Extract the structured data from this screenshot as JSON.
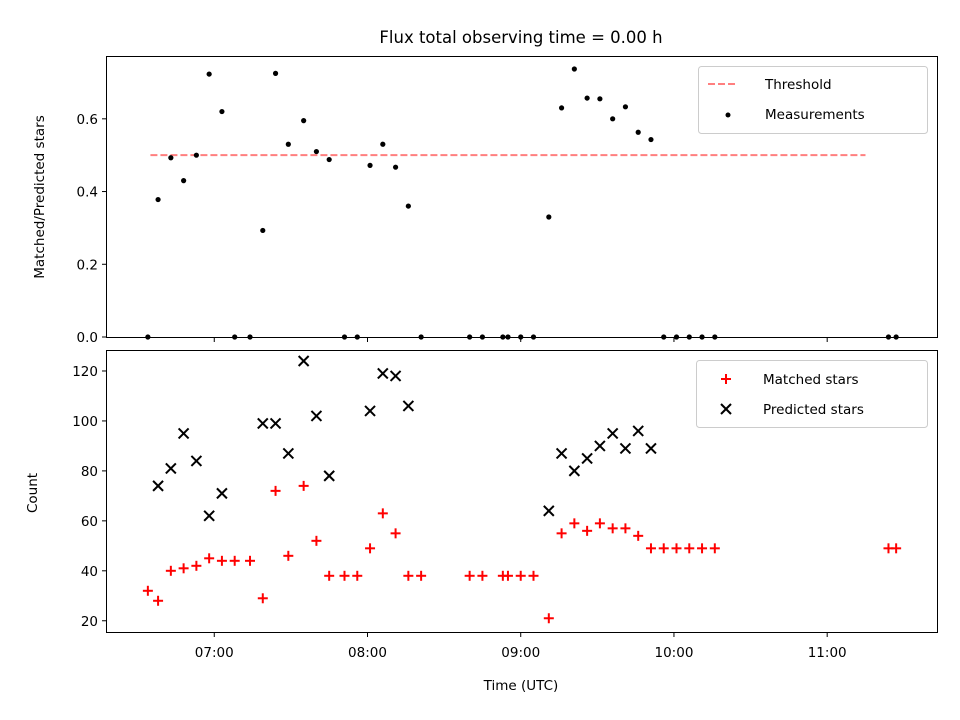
{
  "chart_data": {
    "title": "Flux total observing time = 0.00 h",
    "xlabel": "Time (UTC)",
    "x_tick_labels": [
      "07:00",
      "08:00",
      "09:00",
      "10:00",
      "11:00"
    ],
    "x_ticks": [
      "07:00",
      "08:00",
      "09:00",
      "10:00",
      "11:00"
    ],
    "xlim": [
      "06:18",
      "11:43"
    ],
    "colors": {
      "threshold": "#ff7f7f",
      "measurements": "#000000",
      "matched": "#ff0000",
      "predicted": "#000000"
    },
    "panels": [
      {
        "type": "scatter",
        "ylabel": "Matched/Predicted stars",
        "ylim": [
          0,
          0.77
        ],
        "yticks": [
          0.0,
          0.2,
          0.4,
          0.6
        ],
        "y_tick_labels": [
          "0.0",
          "0.2",
          "0.4",
          "0.6"
        ],
        "legend_position": "top-right",
        "threshold": {
          "name": "Threshold",
          "value": 0.5,
          "x_range": [
            "06:35",
            "11:15"
          ],
          "style": "dashed"
        },
        "series": [
          {
            "name": "Measurements",
            "marker": "dot",
            "points": [
              [
                "06:34",
                0.0
              ],
              [
                "06:38",
                0.378
              ],
              [
                "06:43",
                0.493
              ],
              [
                "06:48",
                0.43
              ],
              [
                "06:53",
                0.5
              ],
              [
                "06:58",
                0.723
              ],
              [
                "07:03",
                0.62
              ],
              [
                "07:08",
                0.0
              ],
              [
                "07:14",
                0.0
              ],
              [
                "07:19",
                0.293
              ],
              [
                "07:24",
                0.725
              ],
              [
                "07:29",
                0.53
              ],
              [
                "07:35",
                0.595
              ],
              [
                "07:40",
                0.51
              ],
              [
                "07:45",
                0.488
              ],
              [
                "07:51",
                0.0
              ],
              [
                "07:56",
                0.0
              ],
              [
                "08:01",
                0.472
              ],
              [
                "08:06",
                0.53
              ],
              [
                "08:11",
                0.467
              ],
              [
                "08:16",
                0.36
              ],
              [
                "08:21",
                0.0
              ],
              [
                "08:40",
                0.0
              ],
              [
                "08:45",
                0.0
              ],
              [
                "08:53",
                0.0
              ],
              [
                "08:55",
                0.0
              ],
              [
                "09:00",
                0.0
              ],
              [
                "09:05",
                0.0
              ],
              [
                "09:11",
                0.33
              ],
              [
                "09:16",
                0.63
              ],
              [
                "09:21",
                0.737
              ],
              [
                "09:26",
                0.657
              ],
              [
                "09:31",
                0.655
              ],
              [
                "09:36",
                0.6
              ],
              [
                "09:41",
                0.633
              ],
              [
                "09:46",
                0.563
              ],
              [
                "09:51",
                0.543
              ],
              [
                "09:56",
                0.0
              ],
              [
                "10:01",
                0.0
              ],
              [
                "10:06",
                0.0
              ],
              [
                "10:11",
                0.0
              ],
              [
                "10:16",
                0.0
              ],
              [
                "11:24",
                0.0
              ],
              [
                "11:27",
                0.0
              ]
            ]
          }
        ]
      },
      {
        "type": "scatter",
        "ylabel": "Count",
        "ylim": [
          15.5,
          128
        ],
        "yticks": [
          20,
          40,
          60,
          80,
          100,
          120
        ],
        "y_tick_labels": [
          "20",
          "40",
          "60",
          "80",
          "100",
          "120"
        ],
        "legend_position": "top-right",
        "series": [
          {
            "name": "Matched stars",
            "marker": "plus",
            "points": [
              [
                "06:34",
                32
              ],
              [
                "06:38",
                28
              ],
              [
                "06:43",
                40
              ],
              [
                "06:48",
                41
              ],
              [
                "06:53",
                42
              ],
              [
                "06:58",
                45
              ],
              [
                "07:03",
                44
              ],
              [
                "07:08",
                44
              ],
              [
                "07:14",
                44
              ],
              [
                "07:19",
                29
              ],
              [
                "07:24",
                72
              ],
              [
                "07:29",
                46
              ],
              [
                "07:35",
                74
              ],
              [
                "07:40",
                52
              ],
              [
                "07:45",
                38
              ],
              [
                "07:51",
                38
              ],
              [
                "07:56",
                38
              ],
              [
                "08:01",
                49
              ],
              [
                "08:06",
                63
              ],
              [
                "08:11",
                55
              ],
              [
                "08:16",
                38
              ],
              [
                "08:21",
                38
              ],
              [
                "08:40",
                38
              ],
              [
                "08:45",
                38
              ],
              [
                "08:53",
                38
              ],
              [
                "08:55",
                38
              ],
              [
                "09:00",
                38
              ],
              [
                "09:05",
                38
              ],
              [
                "09:11",
                21
              ],
              [
                "09:16",
                55
              ],
              [
                "09:21",
                59
              ],
              [
                "09:26",
                56
              ],
              [
                "09:31",
                59
              ],
              [
                "09:36",
                57
              ],
              [
                "09:41",
                57
              ],
              [
                "09:46",
                54
              ],
              [
                "09:51",
                49
              ],
              [
                "09:56",
                49
              ],
              [
                "10:01",
                49
              ],
              [
                "10:06",
                49
              ],
              [
                "10:11",
                49
              ],
              [
                "10:16",
                49
              ],
              [
                "11:24",
                49
              ],
              [
                "11:27",
                49
              ]
            ]
          },
          {
            "name": "Predicted stars",
            "marker": "x",
            "points": [
              [
                "06:38",
                74
              ],
              [
                "06:43",
                81
              ],
              [
                "06:48",
                95
              ],
              [
                "06:53",
                84
              ],
              [
                "06:58",
                62
              ],
              [
                "07:03",
                71
              ],
              [
                "07:19",
                99
              ],
              [
                "07:24",
                99
              ],
              [
                "07:29",
                87
              ],
              [
                "07:35",
                124
              ],
              [
                "07:40",
                102
              ],
              [
                "07:45",
                78
              ],
              [
                "08:01",
                104
              ],
              [
                "08:06",
                119
              ],
              [
                "08:11",
                118
              ],
              [
                "08:16",
                106
              ],
              [
                "09:11",
                64
              ],
              [
                "09:16",
                87
              ],
              [
                "09:21",
                80
              ],
              [
                "09:26",
                85
              ],
              [
                "09:31",
                90
              ],
              [
                "09:36",
                95
              ],
              [
                "09:41",
                89
              ],
              [
                "09:46",
                96
              ],
              [
                "09:51",
                89
              ]
            ]
          }
        ]
      }
    ]
  }
}
